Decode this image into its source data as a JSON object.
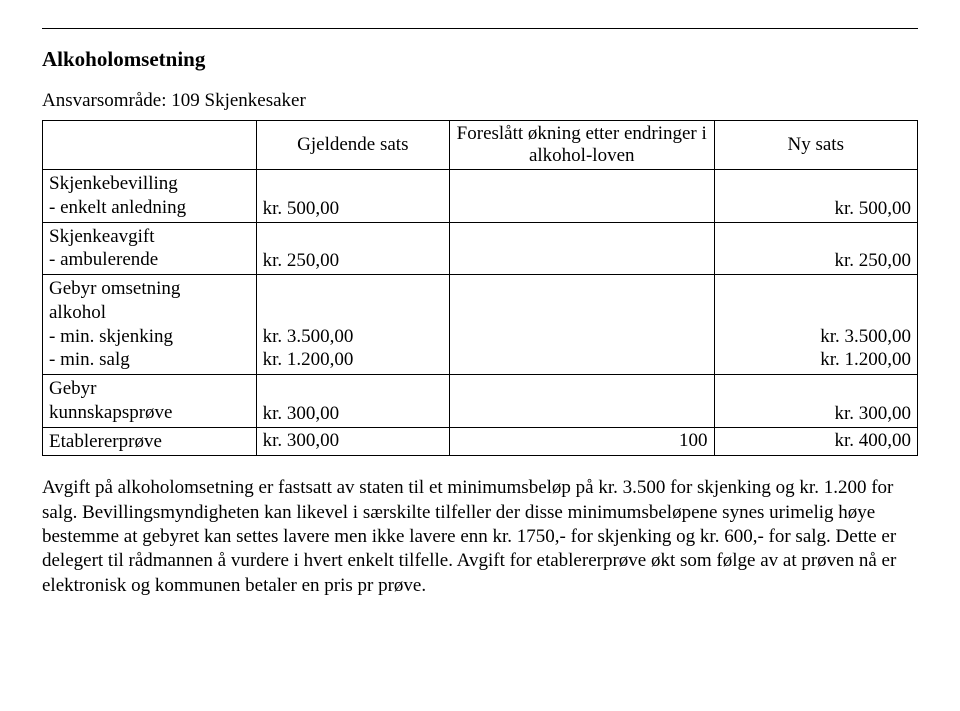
{
  "heading": "Alkoholomsetning",
  "subheading": "Ansvarsområde: 109 Skjenkesaker",
  "table": {
    "headers": {
      "col2": "Gjeldende sats",
      "col3": "Foreslått økning etter endringer i alkohol-loven",
      "col4": "Ny sats"
    },
    "rows": [
      {
        "label_lines": [
          "Skjenkebevilling",
          "- enkelt anledning"
        ],
        "c2": "kr.    500,00",
        "c3": "",
        "c4": "kr.    500,00"
      },
      {
        "label_lines": [
          "Skjenkeavgift",
          "- ambulerende"
        ],
        "c2": "kr.    250,00",
        "c3": "",
        "c4": "kr.    250,00"
      },
      {
        "label_lines": [
          "Gebyr omsetning",
          "alkohol",
          "-    min. skjenking",
          "-    min. salg"
        ],
        "c2_lines": [
          "",
          "",
          "kr. 3.500,00",
          "kr. 1.200,00"
        ],
        "c3": "",
        "c4_lines": [
          "",
          "",
          "kr. 3.500,00",
          "kr. 1.200,00"
        ]
      },
      {
        "label_lines": [
          "Gebyr",
          "kunnskapsprøve"
        ],
        "c2": "kr.    300,00",
        "c3": "",
        "c4": "kr.    300,00"
      },
      {
        "label_lines": [
          "Etablererprøve"
        ],
        "c2": "kr.    300,00",
        "c3": "100",
        "c4": "kr.    400,00"
      }
    ]
  },
  "paragraph": "Avgift på alkoholomsetning er fastsatt av staten til et minimumsbeløp på kr. 3.500 for skjenking og kr. 1.200 for salg. Bevillingsmyndigheten kan likevel i særskilte tilfeller der disse minimumsbeløpene synes urimelig høye bestemme at gebyret kan settes lavere men ikke lavere enn kr. 1750,- for skjenking og kr. 600,- for salg. Dette er delegert til rådmannen å vurdere i hvert enkelt tilfelle. Avgift for etablererprøve økt som følge av at prøven nå er elektronisk og kommunen betaler en pris pr prøve."
}
